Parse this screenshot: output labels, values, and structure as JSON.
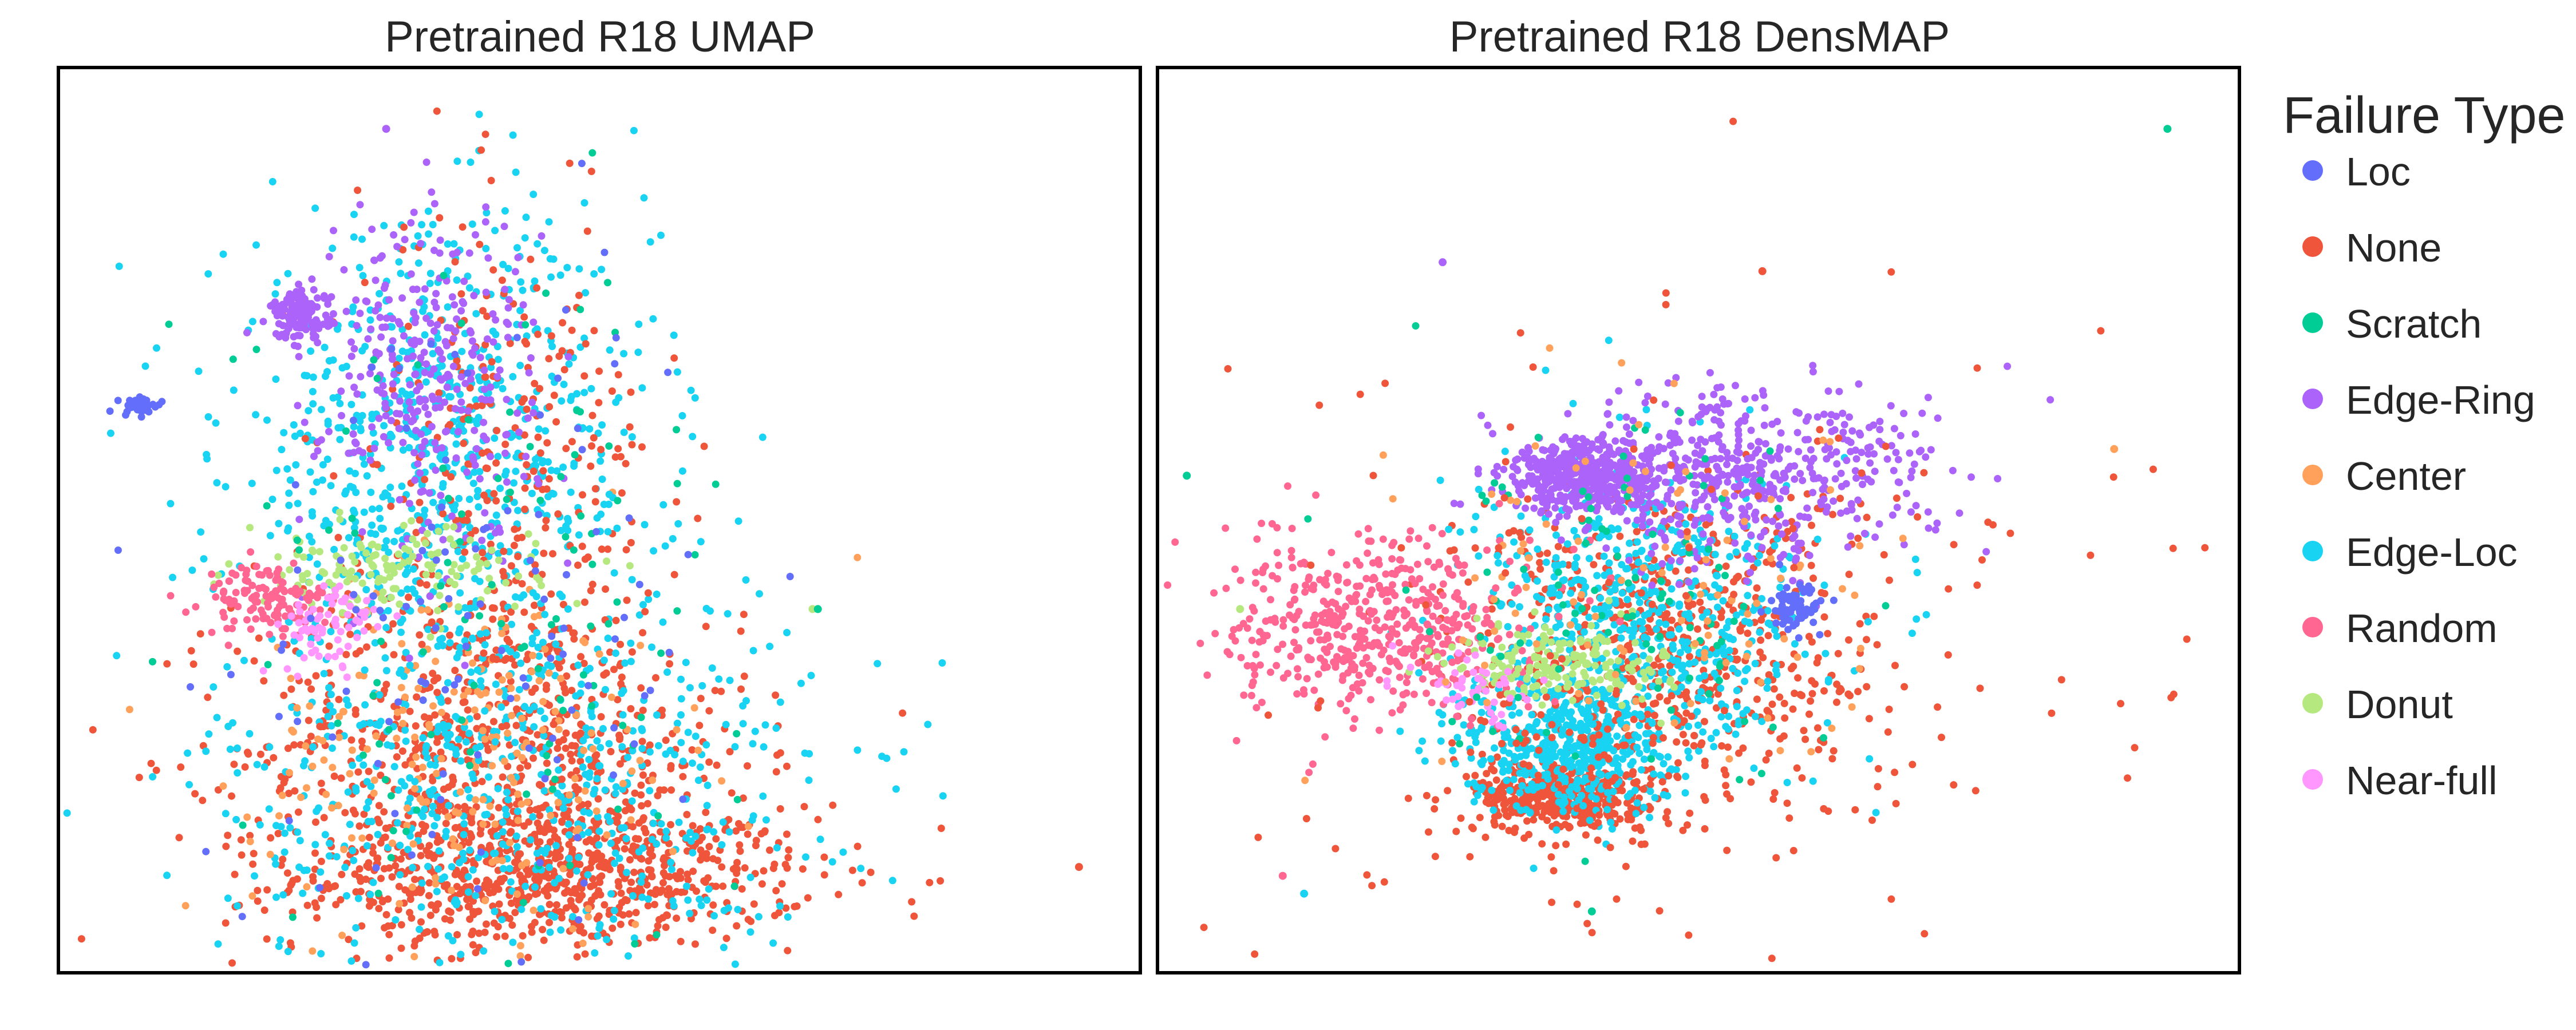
{
  "chart_data": {
    "type": "scatter",
    "legend": {
      "title": "Failure Type",
      "placement": "right",
      "entries": [
        {
          "name": "Loc",
          "color": "#636EFA"
        },
        {
          "name": "None",
          "color": "#EF553B"
        },
        {
          "name": "Scratch",
          "color": "#00CC96"
        },
        {
          "name": "Edge-Ring",
          "color": "#AB63FA"
        },
        {
          "name": "Center",
          "color": "#FFA15A"
        },
        {
          "name": "Edge-Loc",
          "color": "#19D3F3"
        },
        {
          "name": "Random",
          "color": "#FF6692"
        },
        {
          "name": "Donut",
          "color": "#B6E880"
        },
        {
          "name": "Near-full",
          "color": "#FF97FF"
        }
      ]
    },
    "panels": [
      {
        "title": "Pretrained R18 UMAP",
        "grid": false,
        "axis_ticks": false,
        "xlim": [
          0,
          100
        ],
        "ylim": [
          0,
          100
        ],
        "clusters": [
          {
            "category": "None",
            "cx": 46,
            "cy": 10,
            "sx": 12,
            "sy": 4,
            "n": 700
          },
          {
            "category": "None",
            "cx": 40,
            "cy": 24,
            "sx": 12,
            "sy": 10,
            "n": 750
          },
          {
            "category": "Edge-Loc",
            "cx": 42,
            "cy": 20,
            "sx": 14,
            "sy": 12,
            "n": 650
          },
          {
            "category": "Center",
            "cx": 38,
            "cy": 24,
            "sx": 10,
            "sy": 10,
            "n": 220
          },
          {
            "category": "Edge-Loc",
            "cx": 35,
            "cy": 57,
            "sx": 10,
            "sy": 13,
            "n": 750
          },
          {
            "category": "None",
            "cx": 41,
            "cy": 57,
            "sx": 7,
            "sy": 13,
            "n": 260
          },
          {
            "category": "Edge-Ring",
            "cx": 34,
            "cy": 66,
            "sx": 5,
            "sy": 10,
            "n": 320
          },
          {
            "category": "Edge-Ring",
            "cx": 22,
            "cy": 73,
            "sx": 1.4,
            "sy": 1.3,
            "n": 140
          },
          {
            "category": "Loc",
            "cx": 7,
            "cy": 63,
            "sx": 1.1,
            "sy": 0.6,
            "n": 30
          },
          {
            "category": "Donut",
            "cx": 30,
            "cy": 44,
            "sx": 7,
            "sy": 2.5,
            "n": 150
          },
          {
            "category": "Random",
            "cx": 19,
            "cy": 41,
            "sx": 3,
            "sy": 2,
            "n": 130
          },
          {
            "category": "Near-full",
            "cx": 25,
            "cy": 38,
            "sx": 2.5,
            "sy": 2.5,
            "n": 70
          },
          {
            "category": "Scratch",
            "cx": 40,
            "cy": 40,
            "sx": 12,
            "sy": 20,
            "n": 120
          },
          {
            "category": "Loc",
            "cx": 40,
            "cy": 40,
            "sx": 12,
            "sy": 20,
            "n": 120
          }
        ],
        "outliers": [
          {
            "category": "Edge-Ring",
            "x": 30,
            "y": 94
          },
          {
            "category": "None",
            "x": 95,
            "y": 11
          },
          {
            "category": "Donut",
            "x": 70,
            "y": 40
          },
          {
            "category": "Scratch",
            "x": 70.5,
            "y": 40
          }
        ]
      },
      {
        "title": "Pretrained R18 DensMAP",
        "grid": false,
        "axis_ticks": false,
        "xlim": [
          0,
          100
        ],
        "ylim": [
          0,
          100
        ],
        "clusters": [
          {
            "category": "None",
            "cx": 37,
            "cy": 19,
            "sx": 4,
            "sy": 2,
            "n": 420
          },
          {
            "category": "Edge-Loc",
            "cx": 38,
            "cy": 25,
            "sx": 5,
            "sy": 4,
            "n": 500
          },
          {
            "category": "None",
            "cx": 47,
            "cy": 35,
            "sx": 10,
            "sy": 10,
            "n": 650
          },
          {
            "category": "Edge-Loc",
            "cx": 45,
            "cy": 40,
            "sx": 8,
            "sy": 8,
            "n": 550
          },
          {
            "category": "Random",
            "cx": 20,
            "cy": 38,
            "sx": 7,
            "sy": 5,
            "n": 520
          },
          {
            "category": "Donut",
            "cx": 37,
            "cy": 34,
            "sx": 5,
            "sy": 2.2,
            "n": 180
          },
          {
            "category": "Edge-Ring",
            "cx": 40,
            "cy": 55,
            "sx": 4,
            "sy": 2,
            "n": 450
          },
          {
            "category": "Edge-Ring",
            "cx": 54,
            "cy": 55,
            "sx": 9,
            "sy": 5,
            "n": 520
          },
          {
            "category": "Loc",
            "cx": 59,
            "cy": 40,
            "sx": 1.2,
            "sy": 1.3,
            "n": 70
          },
          {
            "category": "Near-full",
            "cx": 29,
            "cy": 31,
            "sx": 3,
            "sy": 2,
            "n": 50
          },
          {
            "category": "Scratch",
            "cx": 45,
            "cy": 40,
            "sx": 10,
            "sy": 10,
            "n": 100
          },
          {
            "category": "Center",
            "cx": 48,
            "cy": 40,
            "sx": 12,
            "sy": 10,
            "n": 100
          },
          {
            "category": "None",
            "cx": 50,
            "cy": 35,
            "sx": 30,
            "sy": 22,
            "n": 140
          }
        ],
        "outliers": [
          {
            "category": "Scratch",
            "x": 94,
            "y": 94
          },
          {
            "category": "Edge-Ring",
            "x": 26,
            "y": 79
          },
          {
            "category": "None",
            "x": 56,
            "y": 78
          },
          {
            "category": "Scratch",
            "x": 2,
            "y": 55
          },
          {
            "category": "Donut",
            "x": 7,
            "y": 40
          },
          {
            "category": "Center",
            "x": 89,
            "y": 58
          },
          {
            "category": "Scratch",
            "x": 40,
            "y": 6
          },
          {
            "category": "Edge-Loc",
            "x": 13,
            "y": 8
          },
          {
            "category": "Random",
            "x": 11,
            "y": 10
          }
        ]
      }
    ]
  }
}
